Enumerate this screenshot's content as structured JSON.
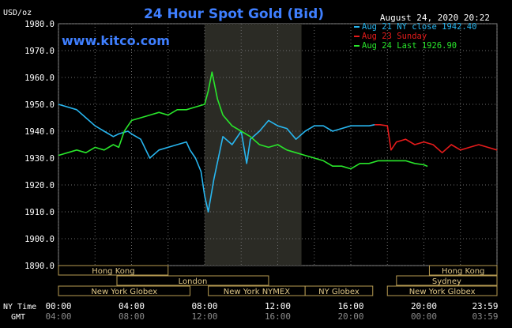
{
  "header": {
    "unit": "USD/oz",
    "title": "24 Hour Spot Gold (Bid)",
    "timestamp": "August 24, 2020 20:22",
    "watermark": "www.kitco.com"
  },
  "legend": [
    {
      "label": "Aug 21 NY close 1942.40",
      "color": "#28b6ef"
    },
    {
      "label": "Aug 23 Sunday",
      "color": "#e51b1b"
    },
    {
      "label": "Aug 24 Last 1926.90",
      "color": "#29e52b"
    }
  ],
  "sessions": {
    "row1": [
      {
        "label": "Hong Kong",
        "from": 0,
        "to": 6
      },
      {
        "label": "Hong Kong",
        "from": 20.3,
        "to": 24
      }
    ],
    "row2": [
      {
        "label": "London",
        "from": 3.2,
        "to": 11.5
      },
      {
        "label": "Sydney",
        "from": 18.5,
        "to": 24
      }
    ],
    "row3": [
      {
        "label": "New York Globex",
        "from": 0,
        "to": 7.2
      },
      {
        "label": "New York NYMEX",
        "from": 8.2,
        "to": 13.5
      },
      {
        "label": "NY Globex",
        "from": 13.5,
        "to": 17.2
      },
      {
        "label": "New York Globex",
        "from": 18,
        "to": 24
      }
    ]
  },
  "footer": {
    "ny_label": "NY Time",
    "gmt_label": "GMT",
    "ny_ticks": [
      "00:00",
      "04:00",
      "08:00",
      "12:00",
      "16:00",
      "20:00",
      "23:59"
    ],
    "gmt_ticks": [
      "04:00",
      "08:00",
      "12:00",
      "16:00",
      "20:00",
      "00:00",
      "03:59"
    ]
  },
  "chart_data": {
    "type": "line",
    "title": "24 Hour Spot Gold (Bid)",
    "ylabel": "USD/oz",
    "xlabel": "NY Time",
    "xlim": [
      0,
      24
    ],
    "ylim": [
      1890,
      1980
    ],
    "yticks": [
      1890,
      1900,
      1910,
      1920,
      1930,
      1940,
      1950,
      1960,
      1970,
      1980
    ],
    "ytick_labels": [
      "1890.0",
      "1900.0",
      "1910.0",
      "1920.0",
      "1930.0",
      "1940.0",
      "1950.0",
      "1960.0",
      "1970.0",
      "1980.0"
    ],
    "grid": true,
    "shaded_x_range": [
      8,
      13.3
    ],
    "series": [
      {
        "name": "Aug 21 NY close 1942.40",
        "color": "#28b6ef",
        "x": [
          0,
          0.5,
          1,
          1.5,
          2,
          2.5,
          3,
          3.3,
          3.8,
          4,
          4.5,
          5,
          5.5,
          6,
          6.5,
          7,
          7.2,
          7.5,
          7.8,
          8,
          8.2,
          8.5,
          9,
          9.5,
          10,
          10.3,
          10.5,
          11,
          11.5,
          12,
          12.5,
          13,
          13.5,
          14,
          14.5,
          15,
          15.5,
          16,
          16.5,
          17,
          17.3
        ],
        "y": [
          1950,
          1949,
          1948,
          1945,
          1942,
          1940,
          1938,
          1939,
          1940,
          1939,
          1937,
          1930,
          1933,
          1934,
          1935,
          1936,
          1933,
          1930,
          1925,
          1916,
          1910,
          1922,
          1938,
          1935,
          1940,
          1928,
          1937,
          1940,
          1944,
          1942,
          1941,
          1937,
          1940,
          1942,
          1942,
          1940,
          1941,
          1942,
          1942,
          1942,
          1942.4
        ]
      },
      {
        "name": "Aug 23 Sunday",
        "color": "#e51b1b",
        "x": [
          17.3,
          17.6,
          18,
          18.2,
          18.5,
          19,
          19.5,
          20,
          20.5,
          21,
          21.5,
          22,
          22.5,
          23,
          23.5,
          24
        ],
        "y": [
          1942.4,
          1942.4,
          1942,
          1933,
          1936,
          1937,
          1935,
          1936,
          1935,
          1932,
          1935,
          1933,
          1934,
          1935,
          1934,
          1933
        ]
      },
      {
        "name": "Aug 24 Last 1926.90",
        "color": "#29e52b",
        "x": [
          18,
          18.5,
          19,
          19.5,
          20,
          20.2
        ],
        "y": [
          1929,
          1929,
          1929,
          1928,
          1927.5,
          1926.9
        ]
      },
      {
        "name": "Aug 24 Last 1926.90",
        "color": "#29e52b",
        "x": [
          0,
          0.5,
          1,
          1.5,
          2,
          2.5,
          3,
          3.3,
          3.6,
          4,
          4.5,
          5,
          5.5,
          6,
          6.5,
          7,
          7.5,
          8,
          8.2,
          8.4,
          8.7,
          9,
          9.5,
          10,
          10.5,
          11,
          11.5,
          12,
          12.5,
          13,
          13.5,
          14,
          14.5,
          15,
          15.5,
          16,
          16.5,
          17,
          17.5,
          18
        ],
        "y": [
          1931,
          1932,
          1933,
          1932,
          1934,
          1933,
          1935,
          1934,
          1940,
          1944,
          1945,
          1946,
          1947,
          1946,
          1948,
          1948,
          1949,
          1950,
          1955,
          1962,
          1952,
          1946,
          1942,
          1940,
          1938,
          1935,
          1934,
          1935,
          1933,
          1932,
          1931,
          1930,
          1929,
          1927,
          1927,
          1926,
          1928,
          1928,
          1929,
          1929
        ]
      }
    ]
  }
}
